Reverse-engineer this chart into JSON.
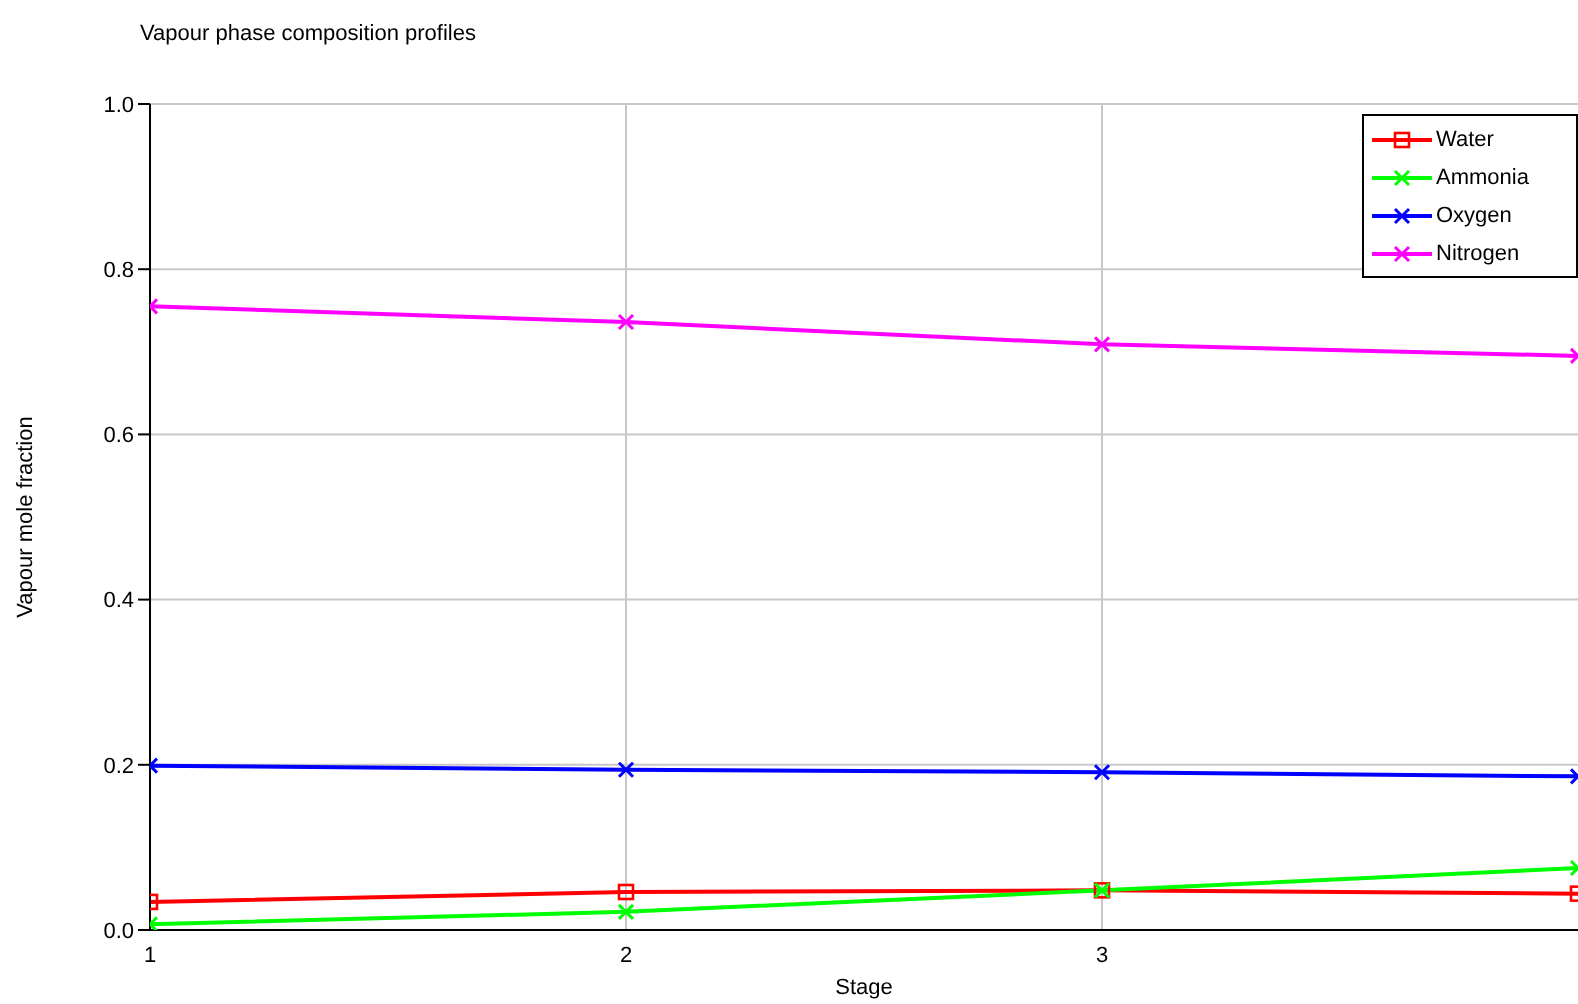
{
  "chart_data": {
    "type": "line",
    "title": "Vapour phase composition profiles",
    "xlabel": "Stage",
    "ylabel": "Vapour mole fraction",
    "x": [
      1,
      2,
      3,
      4
    ],
    "series": [
      {
        "name": "Water",
        "color": "#ff0000",
        "marker": "square",
        "values": [
          0.034,
          0.046,
          0.048,
          0.044
        ]
      },
      {
        "name": "Ammonia",
        "color": "#00ff00",
        "marker": "cross",
        "values": [
          0.007,
          0.022,
          0.048,
          0.075
        ]
      },
      {
        "name": "Oxygen",
        "color": "#0000ff",
        "marker": "cross",
        "values": [
          0.199,
          0.194,
          0.191,
          0.186
        ]
      },
      {
        "name": "Nitrogen",
        "color": "#ff00ff",
        "marker": "cross",
        "values": [
          0.755,
          0.736,
          0.709,
          0.695
        ]
      }
    ],
    "xlim": [
      1,
      4
    ],
    "xticks": [
      1,
      2,
      3
    ],
    "ylim": [
      0,
      1
    ],
    "yticks": [
      {
        "value": 0,
        "label": "0.0"
      },
      {
        "value": 0.2,
        "label": "0.2"
      },
      {
        "value": 0.4,
        "label": "0.4"
      },
      {
        "value": 0.6,
        "label": "0.6"
      },
      {
        "value": 0.8,
        "label": "0.8"
      },
      {
        "value": 1,
        "label": "1.0"
      }
    ],
    "grid": true,
    "legend": "top right"
  }
}
